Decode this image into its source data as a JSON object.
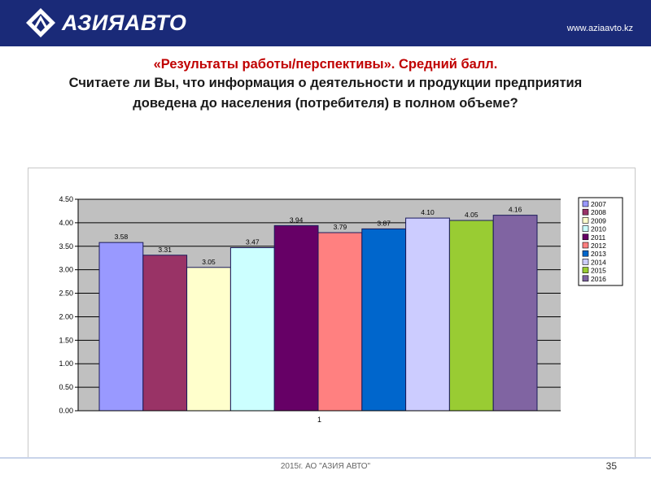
{
  "header": {
    "logo_text": "АЗИЯАВТО",
    "url": "www.aziaavto.kz"
  },
  "slide": {
    "title_line": "«Результаты работы/перспективы». Средний балл.",
    "question": "Считаете ли Вы, что информация о деятельности и продукции предприятия доведена до населения (потребителя) в полном объеме?"
  },
  "footer": {
    "text": "2015г. АО \"АЗИЯ АВТО\"",
    "page_number": "35"
  },
  "chart_data": {
    "type": "bar",
    "categories": [
      "1"
    ],
    "xlabel": "",
    "ylabel": "",
    "ylim": [
      0,
      4.5
    ],
    "yticks": [
      "0.00",
      "0.50",
      "1.00",
      "1.50",
      "2.00",
      "2.50",
      "3.00",
      "3.50",
      "4.00",
      "4.50"
    ],
    "grid": true,
    "legend_position": "right",
    "series": [
      {
        "name": "2007",
        "value": 3.58,
        "label": "3.58",
        "color": "#9999ff"
      },
      {
        "name": "2008",
        "value": 3.31,
        "label": "3.31",
        "color": "#993366"
      },
      {
        "name": "2009",
        "value": 3.05,
        "label": "3.05",
        "color": "#ffffcc"
      },
      {
        "name": "2010",
        "value": 3.47,
        "label": "3.47",
        "color": "#ccffff"
      },
      {
        "name": "2011",
        "value": 3.94,
        "label": "3.94",
        "color": "#660066"
      },
      {
        "name": "2012",
        "value": 3.79,
        "label": "3.79",
        "color": "#ff8080"
      },
      {
        "name": "2013",
        "value": 3.87,
        "label": "3.87",
        "color": "#0066cc"
      },
      {
        "name": "2014",
        "value": 4.1,
        "label": "4.10",
        "color": "#ccccff"
      },
      {
        "name": "2015",
        "value": 4.05,
        "label": "4.05",
        "color": "#99cc33"
      },
      {
        "name": "2016",
        "value": 4.16,
        "label": "4.16",
        "color": "#8064a2"
      }
    ]
  }
}
